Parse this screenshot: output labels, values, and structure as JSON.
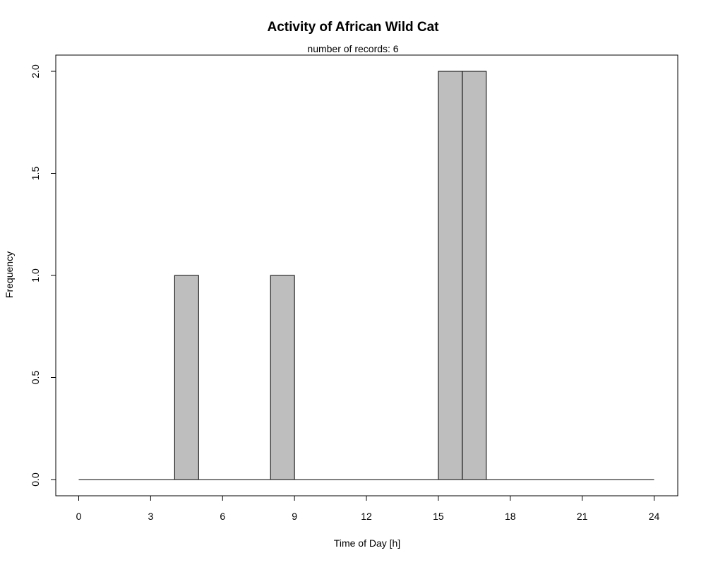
{
  "chart_data": {
    "type": "bar",
    "title": "Activity of African Wild Cat",
    "subtitle": "number of records: 6",
    "xlabel": "Time of Day [h]",
    "ylabel": "Frequency",
    "bin_edges": [
      0,
      1,
      2,
      3,
      4,
      5,
      6,
      7,
      8,
      9,
      10,
      11,
      12,
      13,
      14,
      15,
      16,
      17,
      18,
      19,
      20,
      21,
      22,
      23,
      24
    ],
    "values": [
      0,
      0,
      0,
      0,
      1,
      0,
      0,
      0,
      1,
      0,
      0,
      0,
      0,
      0,
      0,
      2,
      2,
      0,
      0,
      0,
      0,
      0,
      0,
      0
    ],
    "x_ticks": [
      0,
      3,
      6,
      9,
      12,
      15,
      18,
      21,
      24
    ],
    "x_tick_labels": [
      "0",
      "3",
      "6",
      "9",
      "12",
      "15",
      "18",
      "21",
      "24"
    ],
    "y_ticks": [
      0,
      0.5,
      1,
      1.5,
      2
    ],
    "y_tick_labels": [
      "0.0",
      "0.5",
      "1.0",
      "1.5",
      "2.0"
    ],
    "xlim": [
      0,
      24
    ],
    "ylim": [
      0,
      2
    ],
    "grid": false,
    "colors": {
      "bar_fill": "#bebebe",
      "bar_stroke": "#000000"
    }
  }
}
